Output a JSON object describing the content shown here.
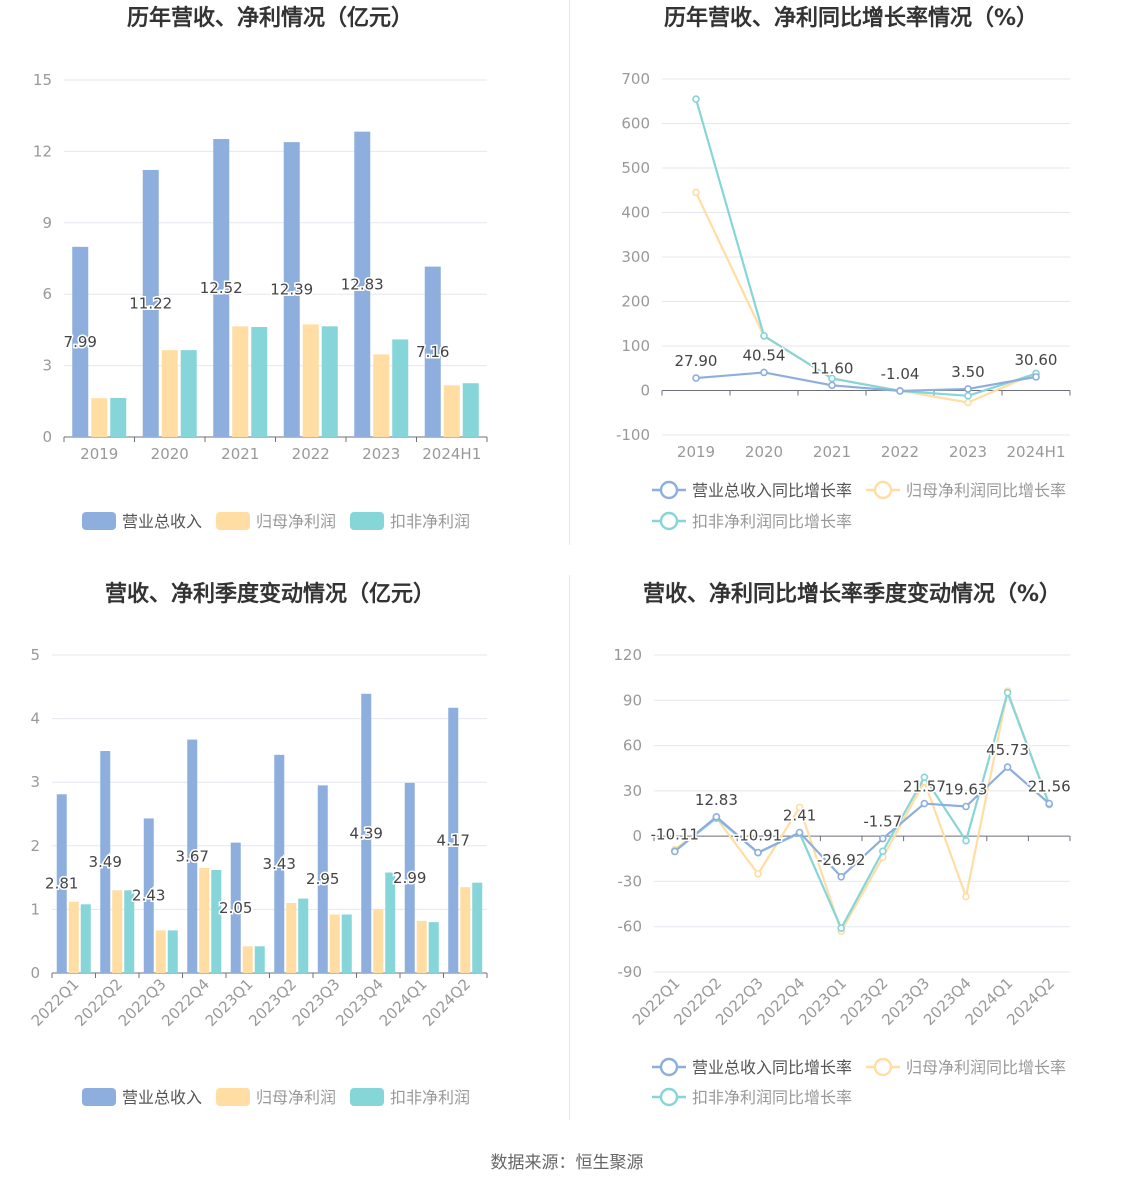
{
  "source_label": "数据来源：恒生聚源",
  "colors": {
    "revenue": "#8eaedd",
    "net_profit": "#ffdda3",
    "deducted_profit": "#86d5d9",
    "axis_text": "#999999",
    "label_text": "#444444",
    "title_text": "#333333",
    "grid": "#e4e7ee",
    "axis_line": "#6e7079"
  },
  "chart_data": [
    {
      "id": "annual",
      "type": "bar",
      "title": "历年营收、净利情况（亿元）",
      "categories": [
        "2019",
        "2020",
        "2021",
        "2022",
        "2023",
        "2024H1"
      ],
      "ylim": [
        0,
        15
      ],
      "yticks": [
        "0",
        "3",
        "6",
        "9",
        "12",
        "15"
      ],
      "grid": true,
      "legend_position": "bottom",
      "series": [
        {
          "name": "营业总收入",
          "values": [
            7.99,
            11.22,
            12.52,
            12.39,
            12.83,
            7.16
          ],
          "labels": [
            "7.99",
            "11.22",
            "12.52",
            "12.39",
            "12.83",
            "7.16"
          ]
        },
        {
          "name": "归母净利润",
          "values": [
            1.63,
            3.65,
            4.65,
            4.73,
            3.47,
            2.17
          ]
        },
        {
          "name": "扣非净利润",
          "values": [
            1.64,
            3.65,
            4.62,
            4.65,
            4.1,
            2.26
          ]
        }
      ]
    },
    {
      "id": "annual_growth",
      "type": "line",
      "title": "历年营收、净利同比增长率情况（%）",
      "categories": [
        "2019",
        "2020",
        "2021",
        "2022",
        "2023",
        "2024H1"
      ],
      "ylim": [
        -100,
        700
      ],
      "yticks": [
        "-100",
        "0",
        "100",
        "200",
        "300",
        "400",
        "500",
        "600",
        "700"
      ],
      "grid": true,
      "legend_position": "bottom",
      "series": [
        {
          "name": "营业总收入同比增长率",
          "values": [
            27.9,
            40.54,
            11.6,
            -1.04,
            3.5,
            30.6
          ],
          "labels": [
            "27.90",
            "40.54",
            "11.60",
            "-1.04",
            "3.50",
            "30.60"
          ]
        },
        {
          "name": "归母净利润同比增长率",
          "values": [
            445,
            122,
            27,
            -0.5,
            -27,
            39
          ]
        },
        {
          "name": "扣非净利润同比增长率",
          "values": [
            655,
            123,
            27,
            -1,
            -12,
            38
          ]
        }
      ]
    },
    {
      "id": "quarterly",
      "type": "bar",
      "title": "营收、净利季度变动情况（亿元）",
      "categories": [
        "2022Q1",
        "2022Q2",
        "2022Q3",
        "2022Q4",
        "2023Q1",
        "2023Q2",
        "2023Q3",
        "2023Q4",
        "2024Q1",
        "2024Q2"
      ],
      "ylim": [
        0,
        5
      ],
      "yticks": [
        "0",
        "1",
        "2",
        "3",
        "4",
        "5"
      ],
      "grid": true,
      "legend_position": "bottom",
      "series": [
        {
          "name": "营业总收入",
          "values": [
            2.81,
            3.49,
            2.43,
            3.67,
            2.05,
            3.43,
            2.95,
            4.39,
            2.99,
            4.17
          ],
          "labels": [
            "2.81",
            "3.49",
            "2.43",
            "3.67",
            "2.05",
            "3.43",
            "2.95",
            "4.39",
            "2.99",
            "4.17"
          ]
        },
        {
          "name": "归母净利润",
          "values": [
            1.12,
            1.3,
            0.67,
            1.65,
            0.42,
            1.1,
            0.92,
            1.0,
            0.82,
            1.35
          ]
        },
        {
          "name": "扣非净利润",
          "values": [
            1.08,
            1.3,
            0.67,
            1.62,
            0.42,
            1.17,
            0.92,
            1.58,
            0.8,
            1.42
          ]
        }
      ]
    },
    {
      "id": "quarterly_growth",
      "type": "line",
      "title": "营收、净利同比增长率季度变动情况（%）",
      "categories": [
        "2022Q1",
        "2022Q2",
        "2022Q3",
        "2022Q4",
        "2023Q1",
        "2023Q2",
        "2023Q3",
        "2023Q4",
        "2024Q1",
        "2024Q2"
      ],
      "ylim": [
        -90,
        120
      ],
      "yticks": [
        "-90",
        "-60",
        "-30",
        "0",
        "30",
        "60",
        "90",
        "120"
      ],
      "grid": true,
      "legend_position": "bottom",
      "series": [
        {
          "name": "营业总收入同比增长率",
          "values": [
            -10.11,
            12.83,
            -10.91,
            2.41,
            -26.92,
            -1.57,
            21.57,
            19.63,
            45.73,
            21.56
          ],
          "labels": [
            "-10.11",
            "12.83",
            "-10.91",
            "2.41",
            "-26.92",
            "-1.57",
            "21.57",
            "19.63",
            "45.73",
            "21.56"
          ]
        },
        {
          "name": "归母净利润同比增长率",
          "values": [
            -9,
            12,
            -25,
            19,
            -63,
            -14,
            36,
            -40,
            96,
            21
          ]
        },
        {
          "name": "扣非净利润同比增长率",
          "values": [
            -10,
            12,
            -11,
            2,
            -61,
            -10,
            39,
            -3,
            95,
            21
          ]
        }
      ]
    }
  ]
}
